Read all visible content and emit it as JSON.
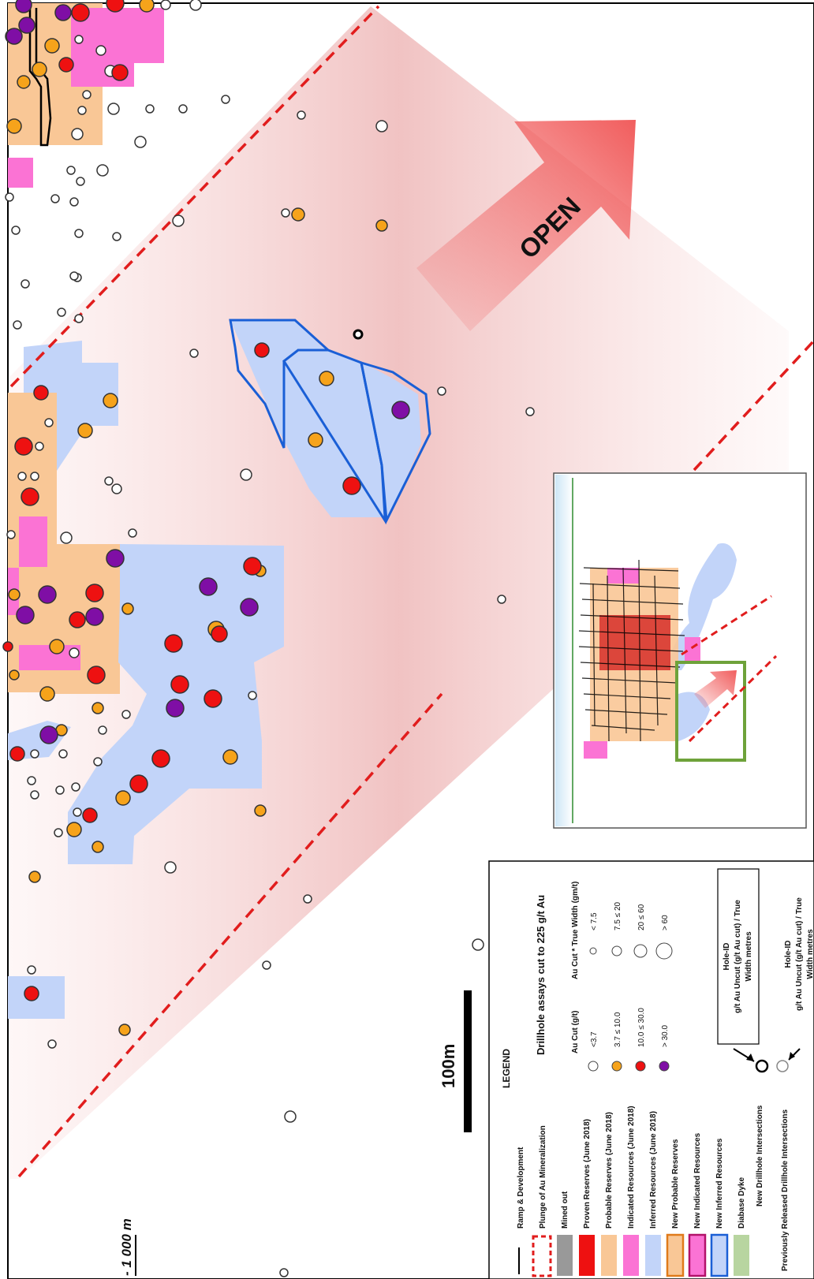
{
  "overlay": {
    "open_label": "OPEN",
    "scale_label": "100m",
    "depth_label": "- 1 000 m"
  },
  "colors": {
    "proven": "#ee1111",
    "probable": "#f9c796",
    "indicated": "#fb73d4",
    "inferred": "#c2d4f9",
    "new_outline": "#1a5fd6",
    "plunge": "#e11d1d",
    "open_arrow": "#f05555",
    "dyke": "#b8d5a0"
  },
  "legend": {
    "title": "LEGEND",
    "subtitle": "Drillhole assays cut to 225 g/t Au",
    "items": [
      {
        "label": "Ramp & Development",
        "symbol": "line"
      },
      {
        "label": "Plunge of Au Mineralization",
        "symbol": "dashed-box"
      },
      {
        "label": "Mined out",
        "symbol": "gray"
      },
      {
        "label": "Proven Reserves (June 2018)",
        "symbol": "red"
      },
      {
        "label": "Probable Reserves (June 2018)",
        "symbol": "orange"
      },
      {
        "label": "Indicated Resources (June 2018)",
        "symbol": "pink"
      },
      {
        "label": "Inferred Resources (June 2018)",
        "symbol": "blue"
      },
      {
        "label": "New Probable Reserves",
        "symbol": "orange-outline"
      },
      {
        "label": "New Indicated Resources",
        "symbol": "pink-outline"
      },
      {
        "label": "New Inferred Resources",
        "symbol": "blue-outline"
      },
      {
        "label": "Diabase Dyke",
        "symbol": "green"
      }
    ],
    "new_intersections": "New Drillhole Intersections",
    "previous_intersections": "Previously Released Drillhole Intersections",
    "au_cut_header": "Au Cut (g/t)",
    "au_cut_classes": [
      "<3.7",
      "3.7 ≤ 10.0",
      "10.0 ≤ 30.0",
      "> 30.0"
    ],
    "width_header": "Au Cut * True Width (gm/t)",
    "width_classes": [
      "< 7.5",
      "7.5 ≤ 20",
      "20 ≤ 60",
      "> 60"
    ],
    "hole_box_line1": "Hole-ID",
    "hole_box_line2": "g/t Au Uncut (g/t Au cut) / True",
    "hole_box_line3": "Width metres",
    "prev_line1": "Hole-ID",
    "prev_line2": "g/t Au Uncut (g/t Au cut) / True",
    "prev_line3": "Width metres"
  }
}
